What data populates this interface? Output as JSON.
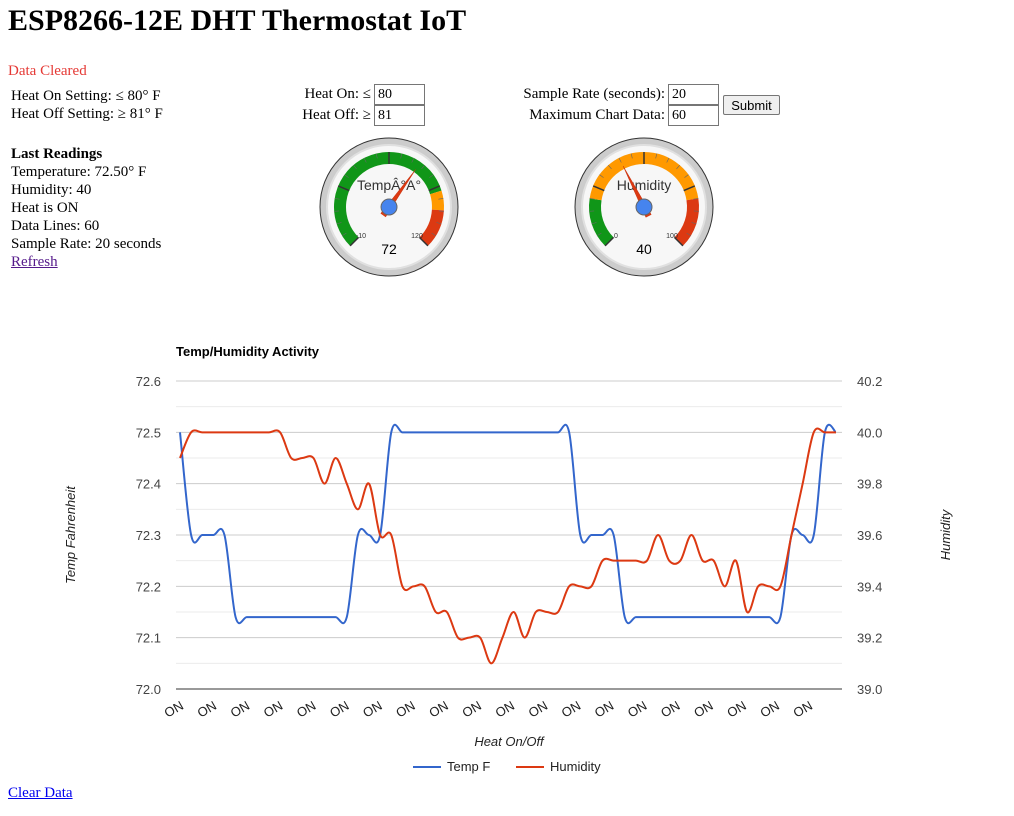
{
  "page": {
    "title": "ESP8266-12E DHT Thermostat IoT",
    "status": "Data Cleared"
  },
  "settings": {
    "heat_on": "Heat On Setting: ≤ 80° F",
    "heat_off": "Heat Off Setting: ≥ 81° F"
  },
  "last_readings": {
    "heading": "Last Readings",
    "temperature": "Temperature: 72.50° F",
    "humidity": "Humidity: 40",
    "heat": "Heat is ON",
    "data_lines": "Data Lines: 60",
    "sample_rate": "Sample Rate: 20 seconds",
    "refresh": "Refresh"
  },
  "form": {
    "heat_on_label": "Heat On: ≤",
    "heat_on_value": "80",
    "heat_off_label": "Heat Off: ≥",
    "heat_off_value": "81",
    "sample_rate_label": "Sample Rate (seconds):",
    "sample_rate_value": "20",
    "max_chart_label": "Maximum Chart Data:",
    "max_chart_value": "60",
    "submit": "Submit"
  },
  "gauges": {
    "temp": {
      "label": "TempÂ°A°",
      "value": 72,
      "display": "72",
      "min": -10,
      "max": 120,
      "min_label": "-10",
      "max_label": "120"
    },
    "humidity": {
      "label": "Humidity",
      "value": 40,
      "display": "40",
      "min": 0,
      "max": 100,
      "min_label": "0",
      "max_label": "100"
    }
  },
  "colors": {
    "temp_series": "#3366cc",
    "humidity_series": "#dc3912",
    "gauge_green": "#109618",
    "gauge_orange": "#ff9900",
    "gauge_red": "#dc3912"
  },
  "chart_data": {
    "type": "line",
    "title": "Temp/Humidity Activity",
    "xlabel": "Heat On/Off",
    "ylabel_left": "Temp Fahrenheit",
    "ylabel_right": "Humidity",
    "ylim_left": [
      72.0,
      72.6
    ],
    "ylim_right": [
      39.0,
      40.2
    ],
    "y_ticks_left": [
      "72.0",
      "72.1",
      "72.2",
      "72.3",
      "72.4",
      "72.5",
      "72.6"
    ],
    "y_ticks_right": [
      "39.0",
      "39.2",
      "39.4",
      "39.6",
      "39.8",
      "40.0",
      "40.2"
    ],
    "categories": [
      "ON",
      "ON",
      "ON",
      "ON",
      "ON",
      "ON",
      "ON",
      "ON",
      "ON",
      "ON",
      "ON",
      "ON",
      "ON",
      "ON",
      "ON",
      "ON",
      "ON",
      "ON",
      "ON",
      "ON",
      "ON",
      "ON",
      "ON",
      "ON",
      "ON",
      "ON",
      "ON",
      "ON",
      "ON",
      "ON",
      "ON",
      "ON",
      "ON",
      "ON",
      "ON",
      "ON",
      "ON",
      "ON",
      "ON",
      "ON",
      "ON",
      "ON",
      "ON",
      "ON",
      "ON",
      "ON",
      "ON",
      "ON",
      "ON",
      "ON",
      "ON",
      "ON",
      "ON",
      "ON",
      "ON",
      "ON",
      "ON",
      "ON",
      "ON",
      "ON"
    ],
    "x_tick_labels": [
      "ON",
      "ON",
      "ON",
      "ON",
      "ON",
      "ON",
      "ON",
      "ON",
      "ON",
      "ON",
      "ON",
      "ON",
      "ON",
      "ON",
      "ON",
      "ON",
      "ON",
      "ON",
      "ON",
      "ON"
    ],
    "grid": true,
    "legend": "bottom",
    "series": [
      {
        "name": "Temp F",
        "axis": "left",
        "values": [
          72.5,
          72.3,
          72.3,
          72.3,
          72.3,
          72.14,
          72.14,
          72.14,
          72.14,
          72.14,
          72.14,
          72.14,
          72.14,
          72.14,
          72.14,
          72.14,
          72.3,
          72.3,
          72.3,
          72.5,
          72.5,
          72.5,
          72.5,
          72.5,
          72.5,
          72.5,
          72.5,
          72.5,
          72.5,
          72.5,
          72.5,
          72.5,
          72.5,
          72.5,
          72.5,
          72.5,
          72.3,
          72.3,
          72.3,
          72.3,
          72.14,
          72.14,
          72.14,
          72.14,
          72.14,
          72.14,
          72.14,
          72.14,
          72.14,
          72.14,
          72.14,
          72.14,
          72.14,
          72.14,
          72.14,
          72.3,
          72.3,
          72.3,
          72.5,
          72.5
        ]
      },
      {
        "name": "Humidity",
        "axis": "right",
        "values": [
          39.9,
          40.0,
          40.0,
          40.0,
          40.0,
          40.0,
          40.0,
          40.0,
          40.0,
          40.0,
          39.9,
          39.9,
          39.9,
          39.8,
          39.9,
          39.8,
          39.7,
          39.8,
          39.6,
          39.6,
          39.4,
          39.4,
          39.4,
          39.3,
          39.3,
          39.2,
          39.2,
          39.2,
          39.1,
          39.2,
          39.3,
          39.2,
          39.3,
          39.3,
          39.3,
          39.4,
          39.4,
          39.4,
          39.5,
          39.5,
          39.5,
          39.5,
          39.5,
          39.6,
          39.5,
          39.5,
          39.6,
          39.5,
          39.5,
          39.4,
          39.5,
          39.3,
          39.4,
          39.4,
          39.4,
          39.6,
          39.8,
          40.0,
          40.0,
          40.0
        ]
      }
    ]
  },
  "clear_data": "Clear Data"
}
